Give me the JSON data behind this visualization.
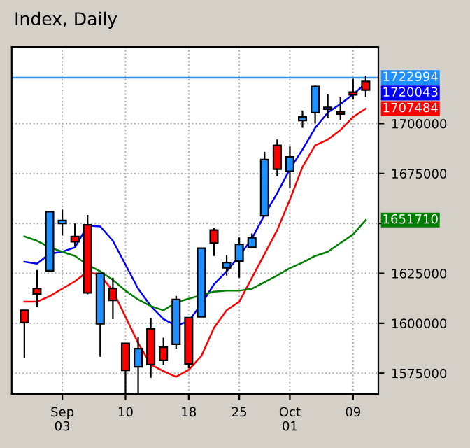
{
  "chart_data": {
    "type": "candlestick",
    "title": "Index, Daily",
    "categories": [
      null,
      null,
      null,
      "Sep\n03",
      null,
      null,
      null,
      null,
      "10",
      null,
      null,
      null,
      null,
      "18",
      null,
      null,
      null,
      "25",
      null,
      null,
      null,
      "Oct\n01",
      null,
      null,
      null,
      null,
      "09",
      null
    ],
    "ohlc": [
      [
        1606500,
        1606500,
        1582500,
        1600400
      ],
      [
        1617400,
        1626700,
        1608000,
        1614700
      ],
      [
        1626300,
        1655900,
        1625800,
        1655900
      ],
      [
        1650000,
        1656900,
        1643900,
        1651500
      ],
      [
        1643500,
        1650000,
        1638500,
        1640800
      ],
      [
        1649300,
        1654300,
        1614500,
        1615200
      ],
      [
        1599700,
        1625000,
        1583200,
        1625000
      ],
      [
        1617400,
        1622800,
        1602100,
        1611500
      ],
      [
        1589900,
        1589900,
        1564500,
        1576400
      ],
      [
        1578200,
        1593200,
        1564500,
        1587300
      ],
      [
        1597100,
        1602600,
        1572700,
        1579300
      ],
      [
        1588000,
        1592800,
        1579300,
        1581400
      ],
      [
        1589500,
        1613700,
        1587300,
        1611900
      ],
      [
        1602800,
        1602800,
        1577500,
        1579700
      ],
      [
        1603200,
        1637600,
        1603200,
        1637600
      ],
      [
        1646700,
        1647800,
        1633700,
        1640200
      ],
      [
        1627800,
        1634100,
        1623900,
        1630400
      ],
      [
        1631100,
        1643000,
        1622800,
        1639500
      ],
      [
        1638000,
        1645000,
        1638000,
        1642800
      ],
      [
        1653900,
        1685900,
        1653900,
        1682000
      ],
      [
        1689100,
        1692000,
        1673900,
        1677200
      ],
      [
        1676100,
        1688500,
        1667800,
        1683300
      ],
      [
        1701500,
        1706600,
        1697900,
        1703300
      ],
      [
        1705500,
        1719000,
        1700000,
        1718500
      ],
      [
        1707200,
        1714600,
        1702900,
        1708100
      ],
      [
        1705900,
        1713100,
        1701800,
        1704800
      ],
      [
        1715700,
        1722400,
        1712000,
        1714400
      ],
      [
        1721100,
        1724000,
        1713100,
        1716800
      ]
    ],
    "colors": [
      "#ff0000",
      "#ff0000",
      "#1e90ff",
      "#1e90ff",
      "#ff0000",
      "#ff0000",
      "#1e90ff",
      "#ff0000",
      "#ff0000",
      "#1e90ff",
      "#ff0000",
      "#ff0000",
      "#1e90ff",
      "#ff0000",
      "#1e90ff",
      "#ff0000",
      "#1e90ff",
      "#1e90ff",
      "#1e90ff",
      "#1e90ff",
      "#ff0000",
      "#1e90ff",
      "#1e90ff",
      "#1e90ff",
      "#1e90ff",
      "#ff0000",
      "#ff0000",
      "#ff0000"
    ],
    "series": [
      {
        "type": "line",
        "color": "#0000ff",
        "values": [
          1630800,
          1629800,
          1634800,
          1635800,
          1638000,
          1648900,
          1648500,
          1641300,
          1629300,
          1617300,
          1608600,
          1602100,
          1598800,
          1601000,
          1609700,
          1619500,
          1626000,
          1633700,
          1642400,
          1654300,
          1665200,
          1677200,
          1687000,
          1697800,
          1705500,
          1709800,
          1714600,
          1720043
        ],
        "value_labels": [
          null,
          null,
          null,
          null,
          null,
          null,
          null,
          null,
          null,
          null,
          null,
          null,
          null,
          null,
          null,
          null,
          null,
          null,
          null,
          null,
          null,
          null,
          null,
          null,
          null,
          null,
          null,
          "1720043"
        ]
      },
      {
        "type": "line",
        "color": "#ff0000",
        "values": [
          1610800,
          1610800,
          1613600,
          1617300,
          1621000,
          1626000,
          1623900,
          1616300,
          1603200,
          1590100,
          1579300,
          1576000,
          1573200,
          1576700,
          1583600,
          1597800,
          1606500,
          1610800,
          1622800,
          1634700,
          1646700,
          1661900,
          1678300,
          1689100,
          1692000,
          1696800,
          1703300,
          1707484
        ],
        "value_labels": [
          null,
          null,
          null,
          null,
          null,
          null,
          null,
          null,
          null,
          null,
          null,
          null,
          null,
          null,
          null,
          null,
          null,
          null,
          null,
          null,
          null,
          null,
          null,
          null,
          null,
          null,
          null,
          "1707484"
        ]
      },
      {
        "type": "line",
        "color": "#008000",
        "values": [
          1643500,
          1641300,
          1638000,
          1635800,
          1633700,
          1629300,
          1626000,
          1621700,
          1616300,
          1611900,
          1608600,
          1606500,
          1610400,
          1612300,
          1614100,
          1615800,
          1616300,
          1616300,
          1617300,
          1620600,
          1623900,
          1627600,
          1630400,
          1633700,
          1635800,
          1640200,
          1644500,
          1651710
        ],
        "value_labels": [
          null,
          null,
          null,
          null,
          null,
          null,
          null,
          null,
          null,
          null,
          null,
          null,
          null,
          null,
          null,
          null,
          null,
          null,
          null,
          null,
          null,
          null,
          null,
          null,
          null,
          null,
          null,
          "1651710"
        ]
      }
    ],
    "ref_lines": [
      {
        "axis": "y",
        "value": 1722994,
        "label": "1722994",
        "color": "#1e90ff"
      }
    ],
    "ylim": [
      1564500,
      1738300
    ],
    "yticks": [
      1575000,
      1600000,
      1625000,
      {
        "value": 1650000,
        "label": null
      },
      1675000,
      1700000
    ],
    "grid": true
  }
}
